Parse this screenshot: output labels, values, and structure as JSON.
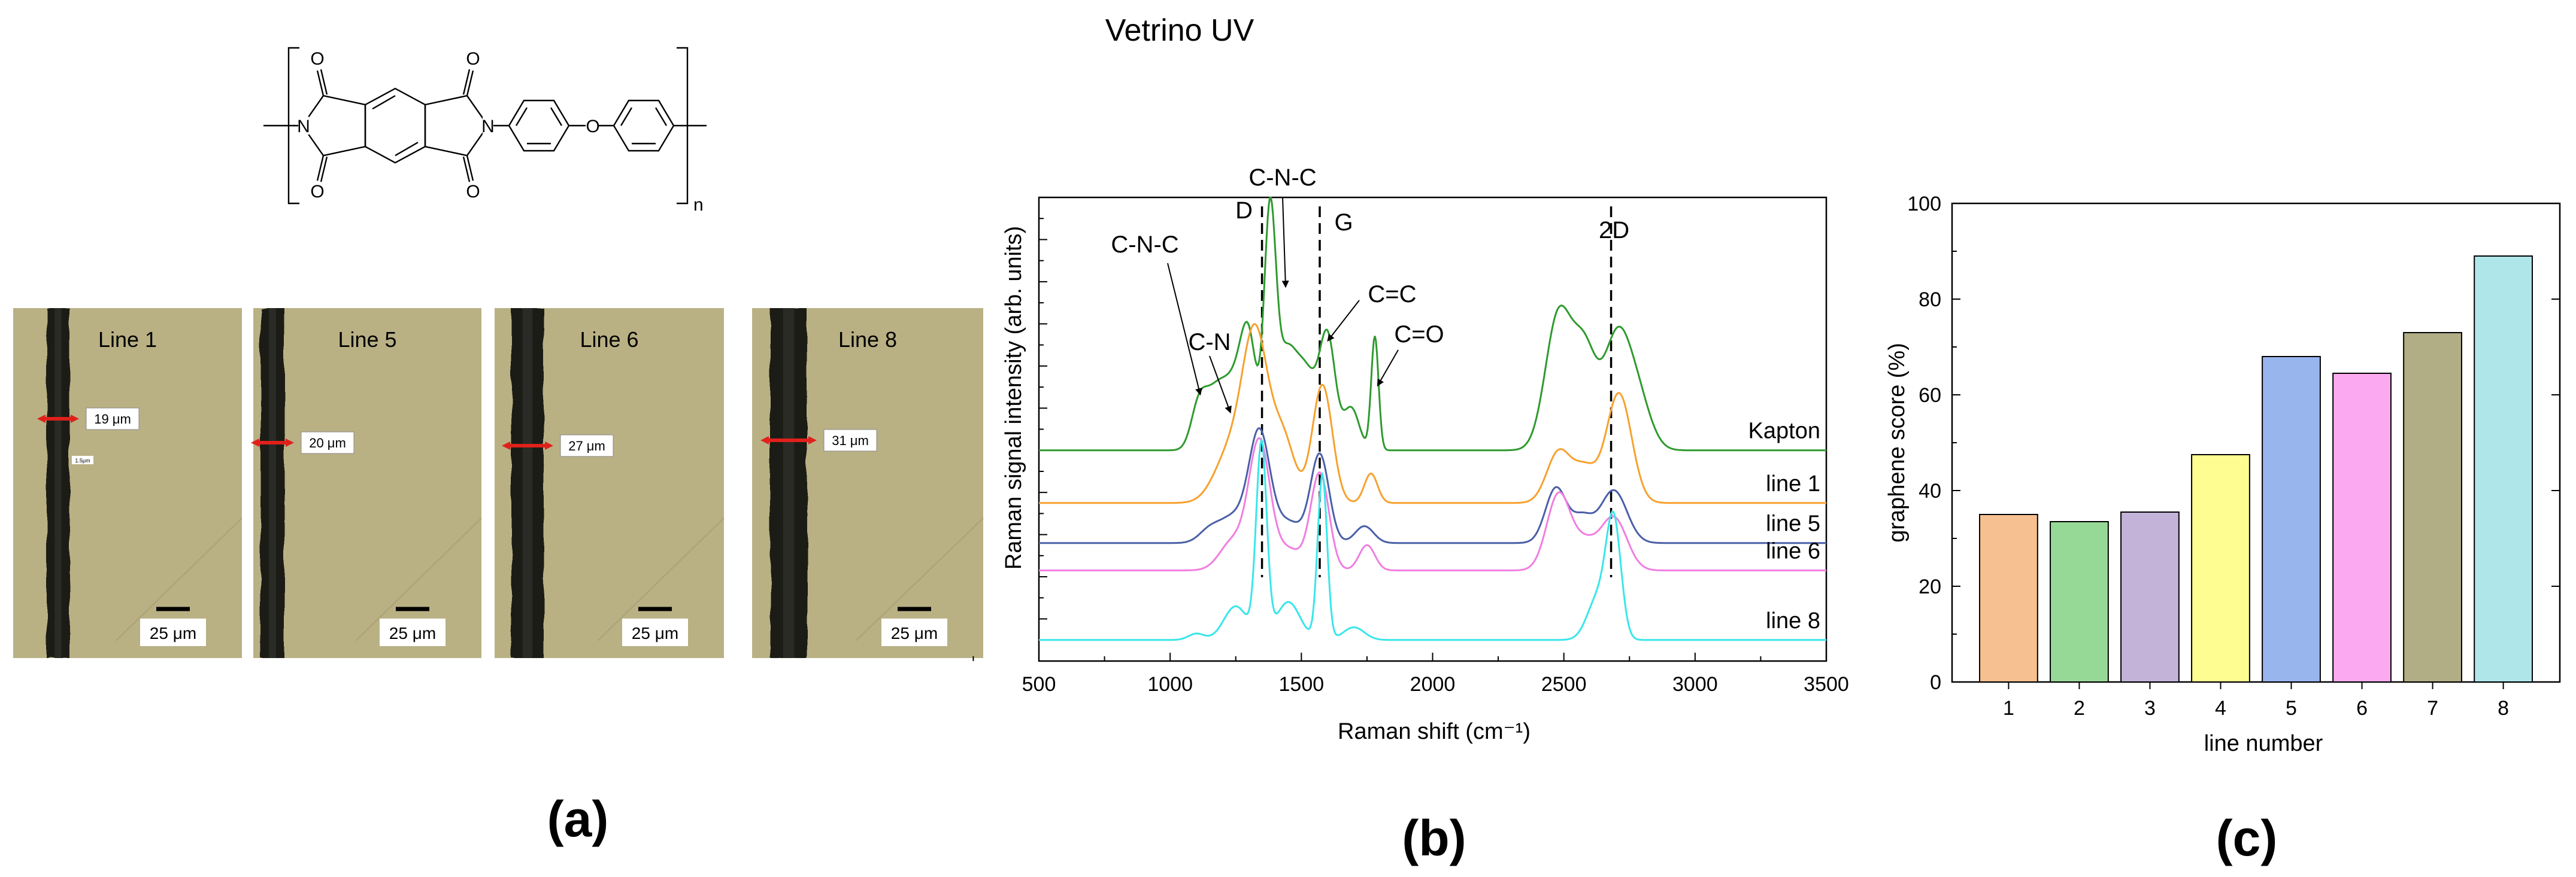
{
  "panel_a": {
    "label": "(a)",
    "images": [
      {
        "label": "Line 1",
        "width_label": "19 μm",
        "extra_label": "1.5μm",
        "scale": "25 μm",
        "groove_thickness": 19
      },
      {
        "label": "Line 5",
        "width_label": "20 μm",
        "scale": "25 μm",
        "groove_thickness": 20
      },
      {
        "label": "Line 6",
        "width_label": "27 μm",
        "scale": "25 μm",
        "groove_thickness": 27
      },
      {
        "label": "Line 8",
        "width_label": "31 μm",
        "scale": "25 μm",
        "groove_thickness": 31
      }
    ],
    "chemistry": {
      "atoms": [
        "O",
        "O",
        "O",
        "O",
        "O",
        "N",
        "N"
      ],
      "subscript": "n"
    }
  },
  "panel_b": {
    "label": "(b)"
  },
  "panel_c": {
    "label": "(c)"
  },
  "colors": {
    "kapton": "#2e9a2e",
    "line1": "#f7a12e",
    "line5": "#4a5fa8",
    "line6": "#f07ee0",
    "line8": "#39e6ea",
    "arrow": "#e0201b",
    "micro_bg": "#b9b184",
    "groove": "#1c1c18"
  },
  "chart_data": [
    {
      "type": "line",
      "title": "Vetrino UV",
      "xlabel": "Raman shift (cm⁻¹)",
      "ylabel": "Raman signal  intensity (arb. units)",
      "xlim": [
        500,
        3500
      ],
      "xticks": [
        500,
        1000,
        1500,
        2000,
        2500,
        3000,
        3500
      ],
      "ylim": [
        0,
        11
      ],
      "vlines": [
        {
          "x": 1350,
          "label": "D"
        },
        {
          "x": 1570,
          "label": "G"
        },
        {
          "x": 2680,
          "label": "2D"
        }
      ],
      "annotations": [
        "C-N-C",
        "C-N-C",
        "C-N",
        "C=C",
        "C=O"
      ],
      "series": [
        {
          "name": "Kapton",
          "color_key": "kapton",
          "offset": 5.0,
          "peaks": [
            [
              1110,
              1.0,
              30
            ],
            [
              1175,
              1.3,
              40
            ],
            [
              1250,
              1.4,
              40
            ],
            [
              1300,
              2.3,
              30
            ],
            [
              1380,
              5.2,
              22
            ],
            [
              1440,
              2.2,
              40
            ],
            [
              1520,
              1.7,
              40
            ],
            [
              1600,
              2.6,
              30
            ],
            [
              1690,
              1.0,
              30
            ],
            [
              1780,
              2.7,
              14
            ],
            [
              2480,
              3.2,
              50
            ],
            [
              2580,
              2.2,
              45
            ],
            [
              2700,
              2.5,
              50
            ],
            [
              2780,
              1.2,
              50
            ]
          ]
        },
        {
          "name": "line 1",
          "color_key": "line1",
          "offset": 3.75,
          "peaks": [
            [
              1230,
              1.2,
              60
            ],
            [
              1325,
              3.8,
              48
            ],
            [
              1430,
              1.5,
              45
            ],
            [
              1580,
              2.8,
              38
            ],
            [
              1765,
              0.7,
              25
            ],
            [
              2480,
              1.2,
              45
            ],
            [
              2580,
              0.8,
              45
            ],
            [
              2710,
              2.6,
              48
            ]
          ]
        },
        {
          "name": "line 5",
          "color_key": "line5",
          "offset": 2.8,
          "peaks": [
            [
              1150,
              0.3,
              40
            ],
            [
              1240,
              0.6,
              50
            ],
            [
              1340,
              2.6,
              40
            ],
            [
              1450,
              0.5,
              50
            ],
            [
              1570,
              2.1,
              35
            ],
            [
              1740,
              0.4,
              35
            ],
            [
              2470,
              1.3,
              40
            ],
            [
              2570,
              0.6,
              40
            ],
            [
              2690,
              1.25,
              50
            ]
          ]
        },
        {
          "name": "line 6",
          "color_key": "line6",
          "offset": 2.15,
          "peaks": [
            [
              1240,
              0.7,
              50
            ],
            [
              1340,
              3.0,
              40
            ],
            [
              1450,
              0.5,
              50
            ],
            [
              1570,
              2.3,
              35
            ],
            [
              1750,
              0.6,
              30
            ],
            [
              2480,
              1.8,
              45
            ],
            [
              2580,
              0.6,
              45
            ],
            [
              2690,
              1.25,
              50
            ]
          ]
        },
        {
          "name": "line 8",
          "color_key": "line8",
          "offset": 0.5,
          "peaks": [
            [
              1100,
              0.15,
              30
            ],
            [
              1250,
              0.8,
              45
            ],
            [
              1348,
              4.6,
              20
            ],
            [
              1450,
              0.9,
              45
            ],
            [
              1580,
              3.9,
              18
            ],
            [
              1700,
              0.3,
              40
            ],
            [
              2630,
              1.0,
              40
            ],
            [
              2690,
              2.7,
              28
            ]
          ]
        }
      ]
    },
    {
      "type": "bar",
      "xlabel": "line number",
      "ylabel": "graphene score (%)",
      "ylim": [
        0,
        100
      ],
      "yticks": [
        0,
        20,
        40,
        60,
        80,
        100
      ],
      "categories": [
        "1",
        "2",
        "3",
        "4",
        "5",
        "6",
        "7",
        "8"
      ],
      "values": [
        35,
        33.5,
        35.5,
        47.5,
        68,
        64.5,
        73,
        89
      ],
      "colors": [
        "#f6c090",
        "#96d996",
        "#c3b3d8",
        "#fdfd91",
        "#98b5ee",
        "#fbaaf1",
        "#b1ae85",
        "#afe6ea"
      ]
    }
  ]
}
